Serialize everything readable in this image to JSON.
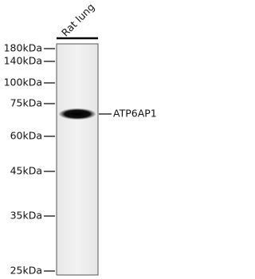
{
  "lane_label": "Rat lung",
  "markers": [
    "180kDa",
    "140kDa",
    "100kDa",
    "75kDa",
    "60kDa",
    "45kDa",
    "35kDa",
    "25kDa"
  ],
  "band_label": "ATP6AP1"
}
